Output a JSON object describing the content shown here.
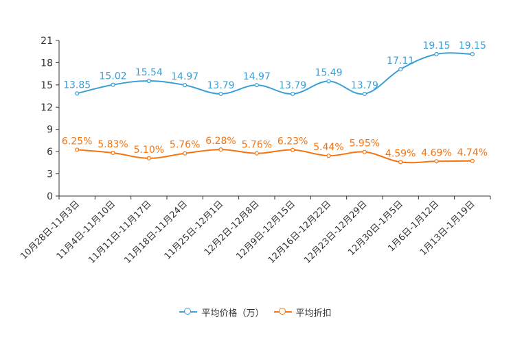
{
  "chart_data": {
    "type": "line",
    "categories": [
      "10月28日-11月3日",
      "11月4日-11月10日",
      "11月11日-11月17日",
      "11月18日-11月24日",
      "11月25日-12月1日",
      "12月2日-12月8日",
      "12月9日-12月15日",
      "12月16日-12月22日",
      "12月23日-12月29日",
      "12月30日-1月5日",
      "1月6日-1月12日",
      "1月13日-1月19日"
    ],
    "ylim": [
      0,
      21
    ],
    "yticks": [
      0,
      3,
      6,
      9,
      12,
      15,
      18,
      21
    ],
    "series": [
      {
        "name": "平均价格（万）",
        "color": "#3a9fd6",
        "values": [
          13.85,
          15.02,
          15.54,
          14.97,
          13.79,
          14.97,
          13.79,
          15.49,
          13.79,
          17.11,
          19.15,
          19.15
        ],
        "labels": [
          "13.85",
          "15.02",
          "15.54",
          "14.97",
          "13.79",
          "14.97",
          "13.79",
          "15.49",
          "13.79",
          "17.11",
          "19.15",
          "19.15"
        ]
      },
      {
        "name": "平均折扣",
        "color": "#f5740f",
        "values": [
          6.25,
          5.83,
          5.1,
          5.76,
          6.28,
          5.76,
          6.23,
          5.44,
          5.95,
          4.59,
          4.69,
          4.74
        ],
        "labels": [
          "6.25%",
          "5.83%",
          "5.10%",
          "5.76%",
          "6.28%",
          "5.76%",
          "6.23%",
          "5.44%",
          "5.95%",
          "4.59%",
          "4.69%",
          "4.74%"
        ]
      }
    ]
  }
}
